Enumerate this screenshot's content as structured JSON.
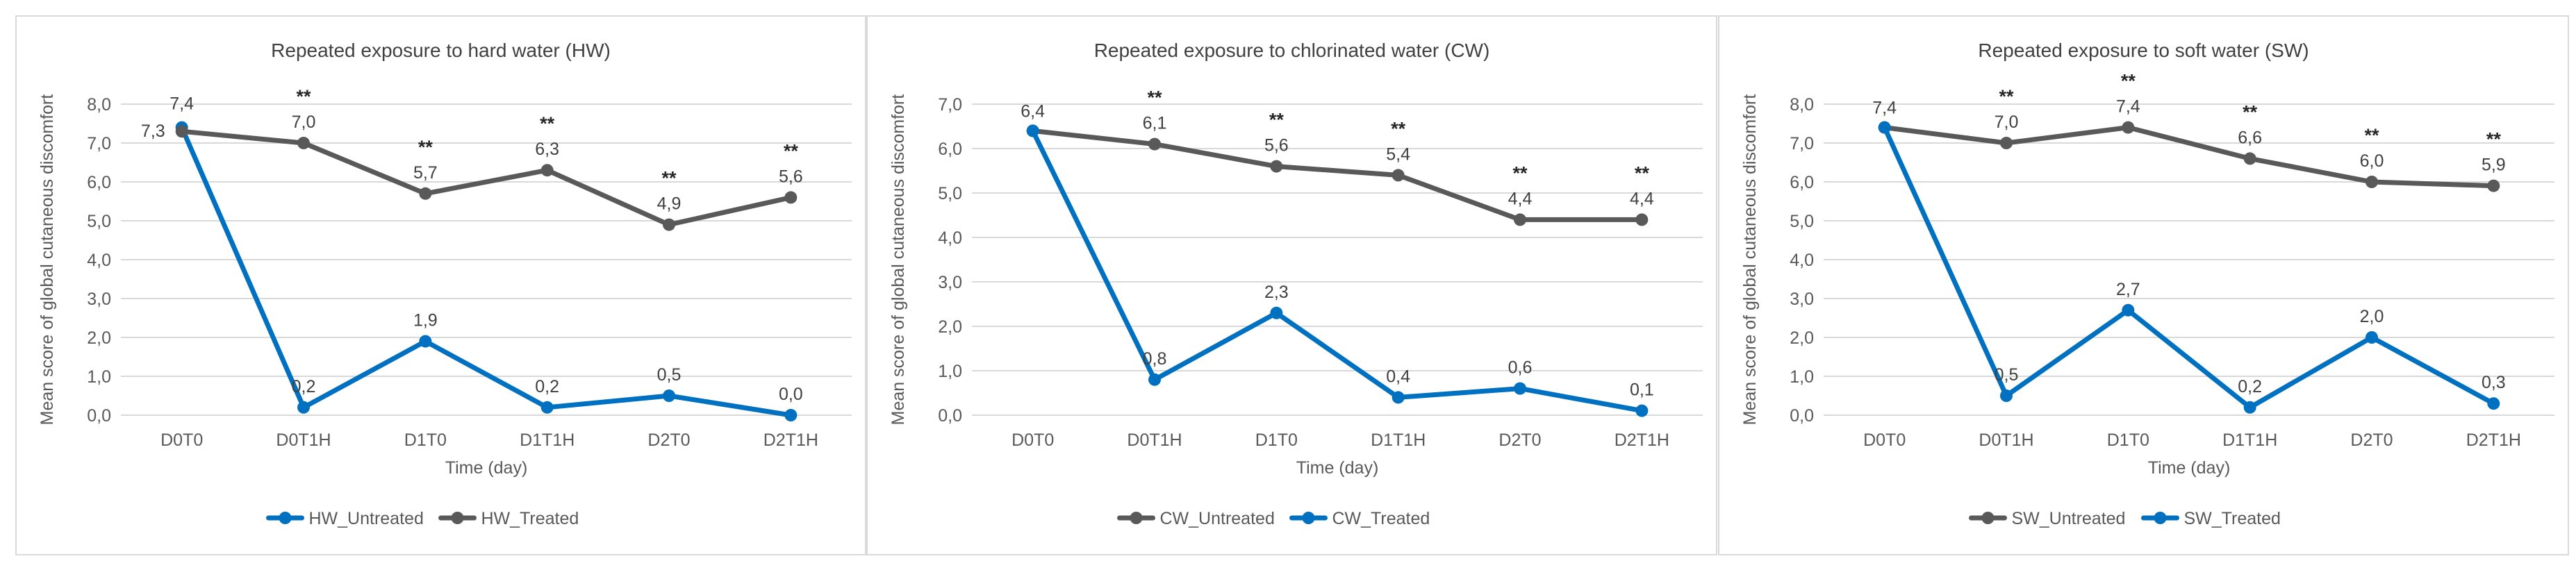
{
  "chart_data": [
    {
      "type": "line",
      "title": "Repeated exposure to hard water (HW)",
      "xlabel": "Time (day)",
      "ylabel": "Mean score of global cutaneous discomfort",
      "categories": [
        "D0T0",
        "D0T1H",
        "D1T0",
        "D1T1H",
        "D2T0",
        "D2T1H"
      ],
      "ylim": [
        0,
        8
      ],
      "yticks": [
        "0,0",
        "1,0",
        "2,0",
        "3,0",
        "4,0",
        "5,0",
        "6,0",
        "7,0",
        "8,0"
      ],
      "grid": true,
      "legend_position": "bottom",
      "series": [
        {
          "name": "HW_Untreated",
          "color": "#0070c0",
          "values": [
            7.4,
            0.2,
            1.9,
            0.2,
            0.5,
            0.0
          ],
          "labels": [
            "7,4",
            "0,2",
            "1,9",
            "0,2",
            "0,5",
            "0,0"
          ]
        },
        {
          "name": "HW_Treated",
          "color": "#595959",
          "values": [
            7.3,
            7.0,
            5.7,
            6.3,
            4.9,
            5.6
          ],
          "labels": [
            "7,3",
            "7,0",
            "5,7",
            "6,3",
            "4,9",
            "5,6"
          ]
        }
      ],
      "significance": [
        "",
        "**",
        "**",
        "**",
        "**",
        "**"
      ]
    },
    {
      "type": "line",
      "title": "Repeated exposure to chlorinated water (CW)",
      "xlabel": "Time (day)",
      "ylabel": "Mean score of global cutaneous discomfort",
      "categories": [
        "D0T0",
        "D0T1H",
        "D1T0",
        "D1T1H",
        "D2T0",
        "D2T1H"
      ],
      "ylim": [
        0,
        7
      ],
      "yticks": [
        "0,0",
        "1,0",
        "2,0",
        "3,0",
        "4,0",
        "5,0",
        "6,0",
        "7,0"
      ],
      "grid": true,
      "legend_position": "bottom",
      "series": [
        {
          "name": "CW_Untreated",
          "color": "#595959",
          "values": [
            6.4,
            6.1,
            5.6,
            5.4,
            4.4,
            4.4
          ],
          "labels": [
            "6,4",
            "6,1",
            "5,6",
            "5,4",
            "4,4",
            "4,4"
          ]
        },
        {
          "name": "CW_Treated",
          "color": "#0070c0",
          "values": [
            6.4,
            0.8,
            2.3,
            0.4,
            0.6,
            0.1
          ],
          "labels": [
            "6,4",
            "0,8",
            "2,3",
            "0,4",
            "0,6",
            "0,1"
          ]
        }
      ],
      "significance": [
        "",
        "**",
        "**",
        "**",
        "**",
        "**"
      ]
    },
    {
      "type": "line",
      "title": "Repeated exposure to soft water (SW)",
      "xlabel": "Time (day)",
      "ylabel": "Mean score of global cutaneous discomfort",
      "categories": [
        "D0T0",
        "D0T1H",
        "D1T0",
        "D1T1H",
        "D2T0",
        "D2T1H"
      ],
      "ylim": [
        0,
        8
      ],
      "yticks": [
        "0,0",
        "1,0",
        "2,0",
        "3,0",
        "4,0",
        "5,0",
        "6,0",
        "7,0",
        "8,0"
      ],
      "grid": true,
      "legend_position": "bottom",
      "series": [
        {
          "name": "SW_Untreated",
          "color": "#595959",
          "values": [
            7.4,
            7.0,
            7.4,
            6.6,
            6.0,
            5.9
          ],
          "labels": [
            "7,4",
            "7,0",
            "7,4",
            "6,6",
            "6,0",
            "5,9"
          ]
        },
        {
          "name": "SW_Treated",
          "color": "#0070c0",
          "values": [
            7.4,
            0.5,
            2.7,
            0.2,
            2.0,
            0.3
          ],
          "labels": [
            "7,4",
            "0,5",
            "2,7",
            "0,2",
            "2,0",
            "0,3"
          ]
        }
      ],
      "significance": [
        "",
        "**",
        "**",
        "**",
        "**",
        "**"
      ]
    }
  ]
}
